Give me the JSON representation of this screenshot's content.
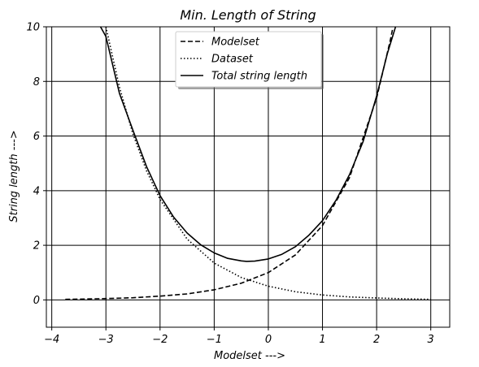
{
  "chart_data": {
    "type": "line",
    "title": "Min. Length of String",
    "xlabel": "Modelset --->",
    "ylabel": "String length --->",
    "xlim": [
      -4.1,
      3.35
    ],
    "ylim": [
      -1,
      10
    ],
    "xticks": [
      {
        "value": -4,
        "label": "−4"
      },
      {
        "value": -3,
        "label": "−3"
      },
      {
        "value": -2,
        "label": "−2"
      },
      {
        "value": -1,
        "label": "−1"
      },
      {
        "value": 0,
        "label": "0"
      },
      {
        "value": 1,
        "label": "1"
      },
      {
        "value": 2,
        "label": "2"
      },
      {
        "value": 3,
        "label": "3"
      }
    ],
    "yticks": [
      {
        "value": 0,
        "label": "0"
      },
      {
        "value": 2,
        "label": "2"
      },
      {
        "value": 4,
        "label": "4"
      },
      {
        "value": 6,
        "label": "6"
      },
      {
        "value": 8,
        "label": "8"
      },
      {
        "value": 10,
        "label": "10"
      }
    ],
    "grid": true,
    "legend": {
      "placement": "top-center"
    },
    "series": [
      {
        "name": " Modelset",
        "style": "dashed",
        "color": "#000000",
        "x": [
          -3.75,
          -3.5,
          -3.0,
          -2.5,
          -2.0,
          -1.5,
          -1.0,
          -0.5,
          0.0,
          0.5,
          1.0,
          1.5,
          2.0,
          2.25,
          2.3
        ],
        "y": [
          0.02,
          0.03,
          0.05,
          0.08,
          0.14,
          0.22,
          0.37,
          0.61,
          1.0,
          1.65,
          2.72,
          4.48,
          7.39,
          9.49,
          9.97
        ]
      },
      {
        "name": "Dataset",
        "style": "dotted",
        "color": "#000000",
        "x": [
          -3.0,
          -2.75,
          -2.5,
          -2.25,
          -2.0,
          -1.5,
          -1.0,
          -0.5,
          0.0,
          0.5,
          1.0,
          1.5,
          2.0,
          2.5,
          3.0
        ],
        "y": [
          10.0,
          7.79,
          6.07,
          4.73,
          3.68,
          2.23,
          1.35,
          0.82,
          0.5,
          0.3,
          0.18,
          0.11,
          0.07,
          0.04,
          0.02
        ]
      },
      {
        "name": "Total string length",
        "style": "solid",
        "color": "#000000",
        "x": [
          -3.1,
          -3.0,
          -2.75,
          -2.5,
          -2.25,
          -2.0,
          -1.75,
          -1.5,
          -1.25,
          -1.0,
          -0.75,
          -0.5,
          -0.4,
          -0.25,
          0.0,
          0.25,
          0.5,
          0.75,
          1.0,
          1.25,
          1.5,
          1.75,
          2.0,
          2.2,
          2.35
        ],
        "y": [
          10.0,
          9.65,
          7.56,
          6.21,
          4.88,
          3.82,
          3.03,
          2.45,
          2.02,
          1.72,
          1.52,
          1.43,
          1.41,
          1.42,
          1.5,
          1.67,
          1.95,
          2.37,
          2.9,
          3.65,
          4.59,
          5.8,
          7.46,
          9.03,
          10.0
        ]
      }
    ]
  }
}
